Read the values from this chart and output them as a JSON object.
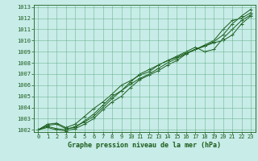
{
  "xlabel": "Graphe pression niveau de la mer (hPa)",
  "background_color": "#c8ece8",
  "grid_color": "#5aaa80",
  "line_color": "#1a5c1a",
  "xlim_min": -0.5,
  "xlim_max": 23.5,
  "ylim_min": 1001.8,
  "ylim_max": 1013.2,
  "xticks": [
    0,
    1,
    2,
    3,
    4,
    5,
    6,
    7,
    8,
    9,
    10,
    11,
    12,
    13,
    14,
    15,
    16,
    17,
    18,
    19,
    20,
    21,
    22,
    23
  ],
  "yticks": [
    1002,
    1003,
    1004,
    1005,
    1006,
    1007,
    1008,
    1009,
    1010,
    1011,
    1012,
    1013
  ],
  "tick_fontsize": 5,
  "label_fontsize": 6,
  "series": [
    [
      1002.0,
      1002.4,
      1002.5,
      1002.1,
      1002.2,
      1002.8,
      1003.4,
      1004.2,
      1005.0,
      1005.5,
      1006.1,
      1006.6,
      1007.0,
      1007.5,
      1008.0,
      1008.4,
      1008.8,
      1009.2,
      1009.6,
      1010.0,
      1011.0,
      1011.8,
      1012.0,
      1012.5
    ],
    [
      1002.0,
      1002.5,
      1002.6,
      1002.2,
      1002.5,
      1003.2,
      1003.9,
      1004.5,
      1005.2,
      1006.0,
      1006.4,
      1006.9,
      1007.2,
      1007.8,
      1008.2,
      1008.5,
      1008.9,
      1009.2,
      1009.5,
      1009.9,
      1010.5,
      1011.5,
      1012.2,
      1012.8
    ],
    [
      1002.0,
      1002.3,
      1002.1,
      1002.0,
      1002.3,
      1002.7,
      1003.2,
      1004.0,
      1004.8,
      1005.5,
      1006.3,
      1007.0,
      1007.4,
      1007.8,
      1008.2,
      1008.6,
      1009.0,
      1009.4,
      1009.0,
      1009.2,
      1010.2,
      1011.0,
      1011.8,
      1012.3
    ],
    [
      1002.0,
      1002.2,
      1002.0,
      1001.9,
      1002.1,
      1002.5,
      1003.0,
      1003.8,
      1004.5,
      1005.0,
      1005.8,
      1006.5,
      1006.9,
      1007.3,
      1007.8,
      1008.2,
      1008.8,
      1009.2,
      1009.5,
      1009.8,
      1010.0,
      1010.5,
      1011.5,
      1012.2
    ]
  ]
}
